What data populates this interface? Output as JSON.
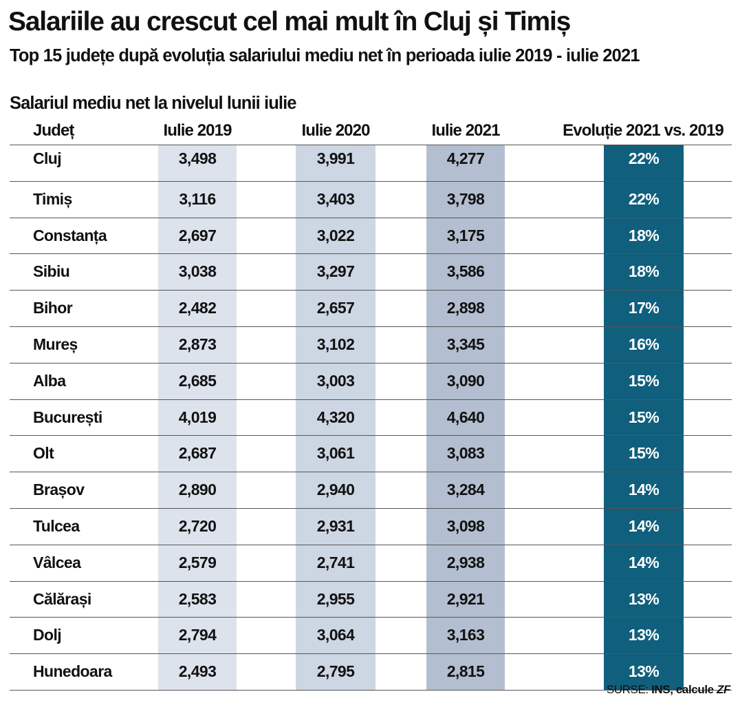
{
  "title": "Salariile au crescut cel mai mult în Cluj și Timiș",
  "subtitle": "Top 15 județe după evoluția salariului mediu net în perioada iulie 2019 - iulie 2021",
  "section_label": "Salariul mediu net la nivelul lunii iulie",
  "source": {
    "prefix": "SURSE: ",
    "bold": "INS, calcule ",
    "italic": "ZF"
  },
  "colors": {
    "col2019": "#dde3ec",
    "col2020": "#cdd6e3",
    "col2021": "#b3bfd0",
    "evolution": "#0f5f7d"
  },
  "chart_data": {
    "type": "table",
    "headers": [
      "Județ",
      "Iulie 2019",
      "Iulie 2020",
      "Iulie 2021",
      "Evoluție 2021 vs. 2019"
    ],
    "rows": [
      [
        "Cluj",
        "3,498",
        "3,991",
        "4,277",
        "22%"
      ],
      [
        "Timiș",
        "3,116",
        "3,403",
        "3,798",
        "22%"
      ],
      [
        "Constanța",
        "2,697",
        "3,022",
        "3,175",
        "18%"
      ],
      [
        "Sibiu",
        "3,038",
        "3,297",
        "3,586",
        "18%"
      ],
      [
        "Bihor",
        "2,482",
        "2,657",
        "2,898",
        "17%"
      ],
      [
        "Mureș",
        "2,873",
        "3,102",
        "3,345",
        "16%"
      ],
      [
        "Alba",
        "2,685",
        "3,003",
        "3,090",
        "15%"
      ],
      [
        "București",
        "4,019",
        "4,320",
        "4,640",
        "15%"
      ],
      [
        "Olt",
        "2,687",
        "3,061",
        "3,083",
        "15%"
      ],
      [
        "Brașov",
        "2,890",
        "2,940",
        "3,284",
        "14%"
      ],
      [
        "Tulcea",
        "2,720",
        "2,931",
        "3,098",
        "14%"
      ],
      [
        "Vâlcea",
        "2,579",
        "2,741",
        "2,938",
        "14%"
      ],
      [
        "Călărași",
        "2,583",
        "2,955",
        "2,921",
        "13%"
      ],
      [
        "Dolj",
        "2,794",
        "3,064",
        "3,163",
        "13%"
      ],
      [
        "Hunedoara",
        "2,493",
        "2,795",
        "2,815",
        "13%"
      ]
    ]
  }
}
